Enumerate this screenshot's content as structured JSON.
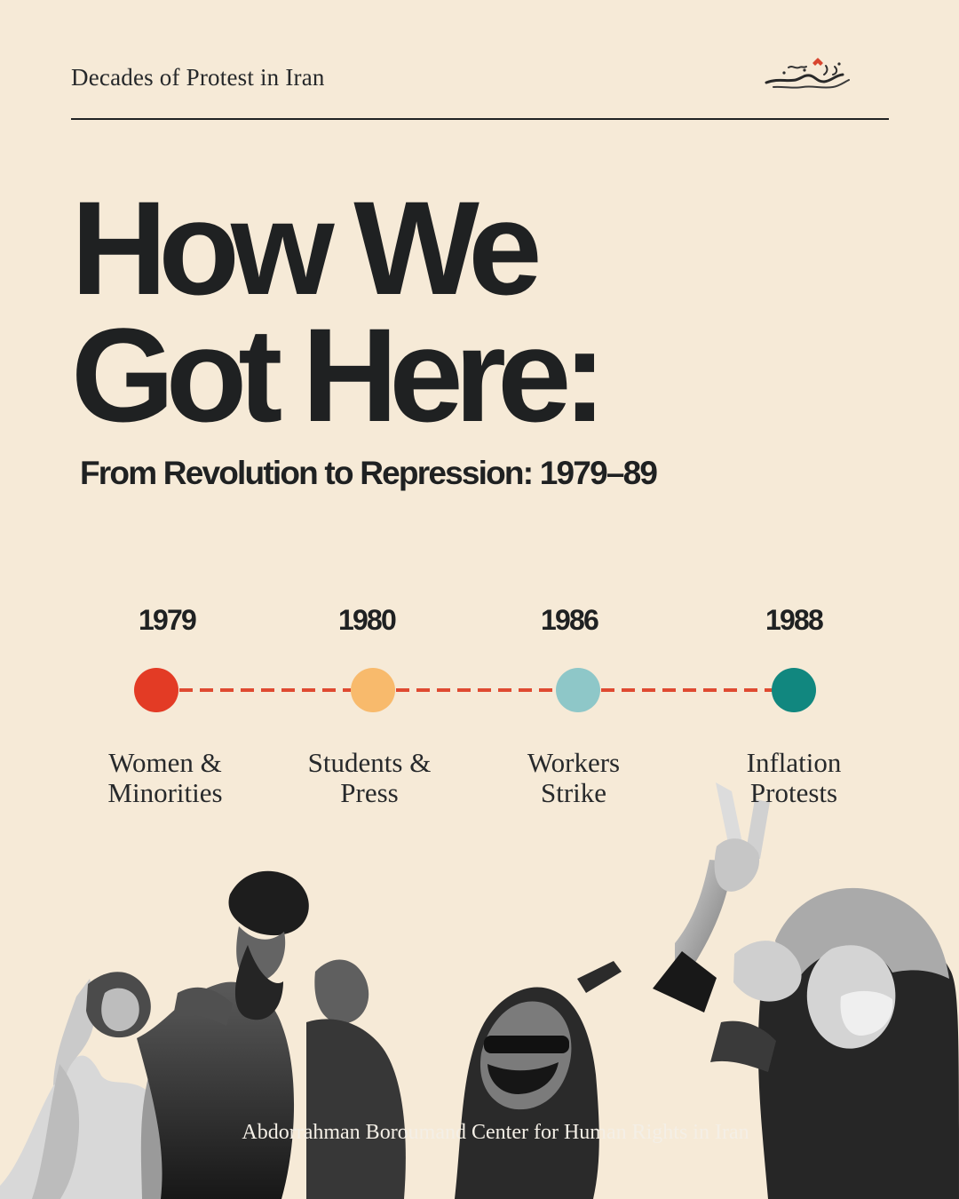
{
  "header": {
    "series_title": "Decades of Protest in Iran",
    "logo": {
      "icon": "organization-logo-calligraphy",
      "accent_color": "#d8452f"
    }
  },
  "hero": {
    "title_line_1": "How We",
    "title_line_2": "Got Here:",
    "subtitle": "From Revolution to Repression: 1979–89"
  },
  "timeline": {
    "connector_color": "#df4a31",
    "events": [
      {
        "year": "1979",
        "label_line_1": "Women &",
        "label_line_2": "Minorities",
        "color": "#e33b25"
      },
      {
        "year": "1980",
        "label_line_1": "Students &",
        "label_line_2": "Press",
        "color": "#f8ba6c"
      },
      {
        "year": "1986",
        "label_line_1": "Workers",
        "label_line_2": "Strike",
        "color": "#8ec7c8"
      },
      {
        "year": "1988",
        "label_line_1": "Inflation",
        "label_line_2": "Protests",
        "color": "#11877f"
      }
    ]
  },
  "footer": {
    "credit": "Abdorrahman Boroumand Center for Human Rights in Iran"
  }
}
